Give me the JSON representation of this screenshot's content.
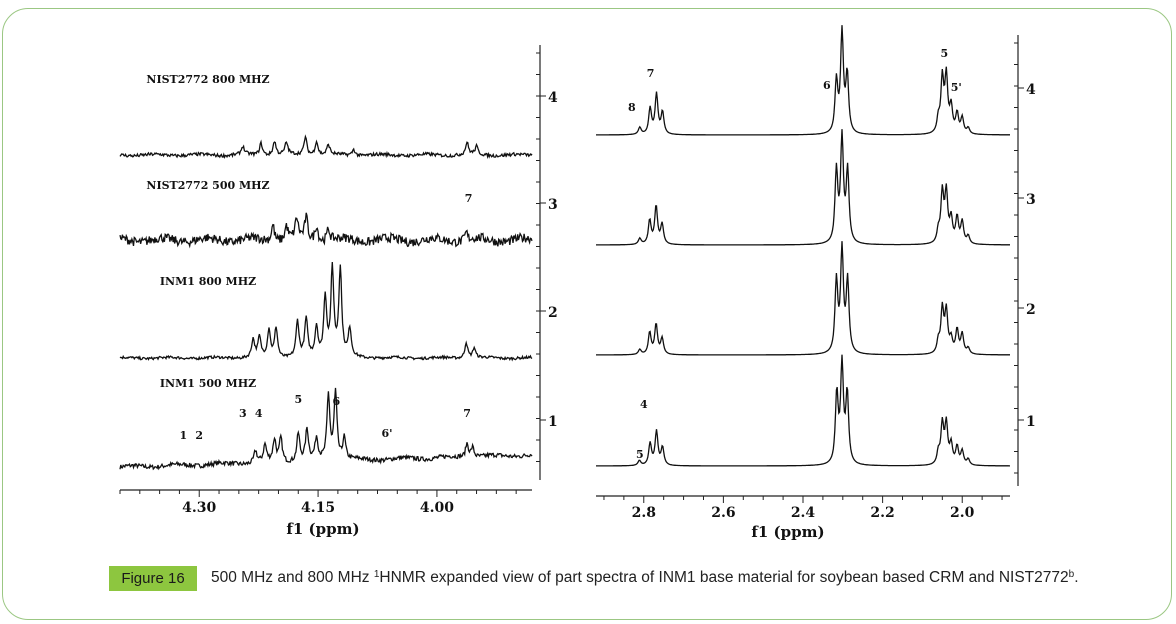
{
  "figure": {
    "label": "Figure 16",
    "caption_pre": "500 MHz and 800 MHz ",
    "caption_sup": "1",
    "caption_mid": "HNMR expanded view of part spectra of INM1 base material for soybean based CRM and NIST2772",
    "caption_sup2": "b",
    "caption_end": ".",
    "accent_color": "#8dc63f",
    "border_color": "#9bc783"
  },
  "chart_data": [
    {
      "type": "line",
      "title": "",
      "xlabel": "f1 (ppm)",
      "ylabel": "",
      "x_reversed": true,
      "xlim": [
        4.4,
        3.88
      ],
      "xticks": [
        "4.30",
        "4.15",
        "4.00"
      ],
      "xtick_values": [
        4.3,
        4.15,
        4.0
      ],
      "y_ticks": [
        "1",
        "2",
        "3",
        "4"
      ],
      "traces": [
        {
          "name": "INM1 500 MHZ",
          "baseline_tilt": 1,
          "noise": 2.2,
          "peaks": [
            [
              4.229,
              12
            ],
            [
              4.217,
              17
            ],
            [
              4.205,
              22
            ],
            [
              4.197,
              24
            ],
            [
              4.175,
              28
            ],
            [
              4.164,
              31
            ],
            [
              4.152,
              22
            ],
            [
              4.137,
              65
            ],
            [
              4.128,
              68
            ],
            [
              4.117,
              22
            ],
            [
              3.962,
              14
            ],
            [
              3.955,
              10
            ]
          ],
          "annotations": [
            {
              "text": "1",
              "x": 4.32,
              "dy": 28
            },
            {
              "text": "2",
              "x": 4.3,
              "dy": 28
            },
            {
              "text": "3",
              "x": 4.245,
              "dy": 50
            },
            {
              "text": "4",
              "x": 4.225,
              "dy": 50
            },
            {
              "text": "5",
              "x": 4.175,
              "dy": 64
            },
            {
              "text": "6",
              "x": 4.127,
              "dy": 62
            },
            {
              "text": "6'",
              "x": 4.063,
              "dy": 30
            },
            {
              "text": "7",
              "x": 3.962,
              "dy": 50
            }
          ]
        },
        {
          "name": "INM1 800 MHZ",
          "baseline_tilt": 0,
          "noise": 1.3,
          "peaks": [
            [
              4.232,
              18
            ],
            [
              4.224,
              20
            ],
            [
              4.212,
              28
            ],
            [
              4.203,
              30
            ],
            [
              4.176,
              36
            ],
            [
              4.165,
              38
            ],
            [
              4.152,
              30
            ],
            [
              4.141,
              60
            ],
            [
              4.132,
              88
            ],
            [
              4.122,
              88
            ],
            [
              4.11,
              28
            ],
            [
              3.963,
              16
            ],
            [
              3.953,
              10
            ]
          ],
          "annotations": []
        },
        {
          "name": "NIST2772 500 MHZ",
          "baseline_tilt": 0,
          "noise": 4.5,
          "peaks": [
            [
              4.207,
              17
            ],
            [
              4.19,
              14
            ],
            [
              4.177,
              20
            ],
            [
              4.165,
              22
            ],
            [
              4.152,
              16
            ],
            [
              4.137,
              12
            ],
            [
              3.963,
              8
            ]
          ],
          "annotations": [
            {
              "text": "7",
              "x": 3.96,
              "dy": 38
            }
          ]
        },
        {
          "name": "NIST2772 800 MHZ",
          "baseline_tilt": 0,
          "noise": 1.6,
          "peaks": [
            [
              4.245,
              8
            ],
            [
              4.222,
              12
            ],
            [
              4.205,
              14
            ],
            [
              4.19,
              12
            ],
            [
              4.166,
              18
            ],
            [
              4.152,
              14
            ],
            [
              4.137,
              10
            ],
            [
              4.105,
              6
            ],
            [
              3.962,
              12
            ],
            [
              3.95,
              8
            ]
          ],
          "annotations": []
        }
      ]
    },
    {
      "type": "line",
      "title": "",
      "xlabel": "f1 (ppm)",
      "ylabel": "",
      "x_reversed": true,
      "xlim": [
        2.92,
        1.88
      ],
      "xticks": [
        "2.8",
        "2.6",
        "2.4",
        "2.2",
        "2.0"
      ],
      "xtick_values": [
        2.8,
        2.6,
        2.4,
        2.2,
        2.0
      ],
      "y_ticks": [
        "1",
        "2",
        "3",
        "4"
      ],
      "traces": [
        {
          "name": "",
          "peaks": [
            [
              2.811,
              5
            ],
            [
              2.784,
              22
            ],
            [
              2.768,
              34
            ],
            [
              2.753,
              18
            ],
            [
              2.315,
              70
            ],
            [
              2.302,
              98
            ],
            [
              2.289,
              70
            ],
            [
              2.06,
              12
            ],
            [
              2.05,
              40
            ],
            [
              2.04,
              40
            ],
            [
              2.028,
              20
            ],
            [
              2.013,
              18
            ],
            [
              2.0,
              14
            ],
            [
              1.985,
              6
            ]
          ],
          "annotations": [
            {
              "text": "4",
              "x": 2.8,
              "dy": 58
            },
            {
              "text": "5",
              "x": 2.81,
              "dy": 8
            }
          ]
        },
        {
          "name": "",
          "peaks": [
            [
              2.81,
              5
            ],
            [
              2.785,
              22
            ],
            [
              2.769,
              30
            ],
            [
              2.754,
              16
            ],
            [
              2.316,
              72
            ],
            [
              2.302,
              102
            ],
            [
              2.288,
              72
            ],
            [
              2.06,
              12
            ],
            [
              2.05,
              44
            ],
            [
              2.04,
              42
            ],
            [
              2.028,
              14
            ],
            [
              2.013,
              24
            ],
            [
              2.0,
              20
            ],
            [
              1.985,
              6
            ]
          ],
          "annotations": []
        },
        {
          "name": "",
          "peaks": [
            [
              2.81,
              6
            ],
            [
              2.785,
              24
            ],
            [
              2.769,
              38
            ],
            [
              2.754,
              20
            ],
            [
              2.316,
              72
            ],
            [
              2.302,
              104
            ],
            [
              2.288,
              72
            ],
            [
              2.06,
              12
            ],
            [
              2.05,
              50
            ],
            [
              2.04,
              50
            ],
            [
              2.028,
              24
            ],
            [
              2.013,
              26
            ],
            [
              2.0,
              22
            ],
            [
              1.985,
              8
            ]
          ],
          "annotations": []
        },
        {
          "name": "",
          "peaks": [
            [
              2.81,
              7
            ],
            [
              2.784,
              26
            ],
            [
              2.768,
              40
            ],
            [
              2.753,
              22
            ],
            [
              2.316,
              52
            ],
            [
              2.302,
              100
            ],
            [
              2.289,
              58
            ],
            [
              2.06,
              14
            ],
            [
              2.05,
              54
            ],
            [
              2.04,
              56
            ],
            [
              2.028,
              26
            ],
            [
              2.013,
              20
            ],
            [
              2.0,
              16
            ],
            [
              1.985,
              6
            ]
          ],
          "annotations": [
            {
              "text": "8",
              "x": 2.83,
              "dy": 24
            },
            {
              "text": "7",
              "x": 2.783,
              "dy": 58
            },
            {
              "text": "6",
              "x": 2.34,
              "dy": 46
            },
            {
              "text": "5",
              "x": 2.045,
              "dy": 78
            },
            {
              "text": "5'",
              "x": 2.015,
              "dy": 44
            }
          ]
        }
      ]
    }
  ]
}
